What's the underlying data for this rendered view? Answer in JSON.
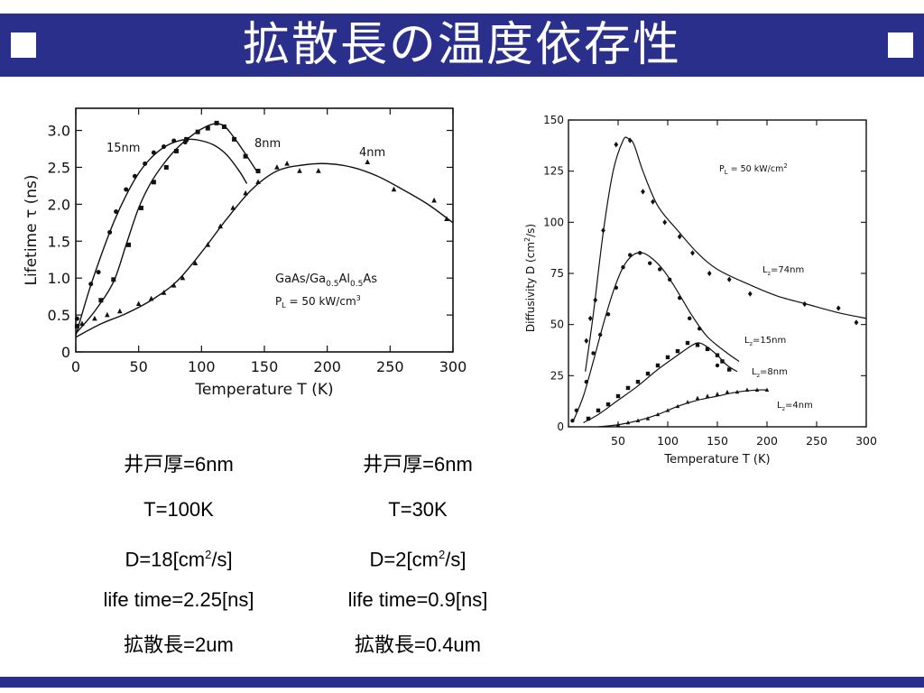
{
  "header": {
    "title": "拡散長の温度依存性"
  },
  "chart_data": [
    {
      "type": "scatter",
      "xlabel": "Temperature  T  (K)",
      "ylabel": "Lifetime τ (ns)",
      "xlim": [
        0,
        300
      ],
      "ylim": [
        0,
        3.3
      ],
      "xticks": [
        0,
        50,
        100,
        150,
        200,
        250,
        300
      ],
      "yticks": [
        0,
        0.5,
        1.0,
        1.5,
        2.0,
        2.5,
        3.0
      ],
      "yticklabels": [
        "0",
        "0.5",
        "1.0",
        "1.5",
        "2.0",
        "2.5",
        "3.0"
      ],
      "annotation": [
        "GaAs/Ga",
        "0.5",
        "Al",
        "0.5",
        "As"
      ],
      "annotation2": [
        "P",
        "L",
        " = 50 kW/cm",
        "3"
      ],
      "series": [
        {
          "name": "15nm",
          "marker": "circle",
          "points": [
            [
              1,
              0.45
            ],
            [
              12,
              0.92
            ],
            [
              18,
              1.08
            ],
            [
              27,
              1.62
            ],
            [
              32,
              1.9
            ],
            [
              40,
              2.2
            ],
            [
              47,
              2.38
            ],
            [
              55,
              2.55
            ],
            [
              62,
              2.7
            ],
            [
              70,
              2.78
            ],
            [
              78,
              2.86
            ],
            [
              87,
              2.84
            ]
          ],
          "curve": [
            [
              0,
              0.22
            ],
            [
              10,
              0.8
            ],
            [
              20,
              1.3
            ],
            [
              30,
              1.75
            ],
            [
              40,
              2.12
            ],
            [
              50,
              2.42
            ],
            [
              60,
              2.63
            ],
            [
              70,
              2.77
            ],
            [
              80,
              2.85
            ],
            [
              90,
              2.88
            ],
            [
              100,
              2.86
            ],
            [
              110,
              2.8
            ],
            [
              120,
              2.67
            ],
            [
              130,
              2.45
            ],
            [
              136,
              2.28
            ]
          ]
        },
        {
          "name": "8nm",
          "marker": "square",
          "points": [
            [
              1,
              0.35
            ],
            [
              20,
              0.7
            ],
            [
              30,
              0.98
            ],
            [
              42,
              1.45
            ],
            [
              52,
              1.95
            ],
            [
              62,
              2.3
            ],
            [
              72,
              2.5
            ],
            [
              80,
              2.72
            ],
            [
              88,
              2.88
            ],
            [
              97,
              2.98
            ],
            [
              105,
              3.03
            ],
            [
              112,
              3.1
            ],
            [
              118,
              3.05
            ],
            [
              126,
              2.88
            ],
            [
              135,
              2.65
            ],
            [
              145,
              2.45
            ]
          ],
          "curve": [
            [
              0,
              0.25
            ],
            [
              15,
              0.55
            ],
            [
              30,
              0.95
            ],
            [
              40,
              1.45
            ],
            [
              50,
              1.95
            ],
            [
              60,
              2.3
            ],
            [
              70,
              2.55
            ],
            [
              80,
              2.75
            ],
            [
              90,
              2.9
            ],
            [
              100,
              3.02
            ],
            [
              110,
              3.09
            ],
            [
              118,
              3.06
            ],
            [
              126,
              2.9
            ],
            [
              135,
              2.68
            ],
            [
              145,
              2.42
            ]
          ]
        },
        {
          "name": "4nm",
          "marker": "triangle",
          "points": [
            [
              5,
              0.38
            ],
            [
              15,
              0.45
            ],
            [
              25,
              0.5
            ],
            [
              35,
              0.55
            ],
            [
              50,
              0.65
            ],
            [
              60,
              0.72
            ],
            [
              70,
              0.8
            ],
            [
              78,
              0.9
            ],
            [
              85,
              1.0
            ],
            [
              95,
              1.2
            ],
            [
              105,
              1.45
            ],
            [
              115,
              1.7
            ],
            [
              125,
              1.95
            ],
            [
              135,
              2.15
            ],
            [
              145,
              2.3
            ],
            [
              160,
              2.5
            ],
            [
              168,
              2.55
            ],
            [
              178,
              2.45
            ],
            [
              193,
              2.45
            ],
            [
              232,
              2.57
            ],
            [
              253,
              2.2
            ],
            [
              285,
              2.05
            ],
            [
              295,
              1.8
            ]
          ],
          "curve": [
            [
              0,
              0.2
            ],
            [
              20,
              0.38
            ],
            [
              40,
              0.52
            ],
            [
              60,
              0.7
            ],
            [
              80,
              0.95
            ],
            [
              100,
              1.35
            ],
            [
              120,
              1.8
            ],
            [
              140,
              2.2
            ],
            [
              160,
              2.45
            ],
            [
              180,
              2.53
            ],
            [
              200,
              2.55
            ],
            [
              220,
              2.5
            ],
            [
              240,
              2.38
            ],
            [
              260,
              2.2
            ],
            [
              280,
              2.0
            ],
            [
              300,
              1.75
            ]
          ]
        }
      ]
    },
    {
      "type": "scatter",
      "xlabel": "Temperature  T  (K)",
      "ylabel": [
        "Diffusivity  D  (cm",
        "2",
        "/s)"
      ],
      "xlim": [
        0,
        300
      ],
      "ylim": [
        0,
        150
      ],
      "xticks": [
        50,
        100,
        150,
        200,
        250,
        300
      ],
      "yticks": [
        0,
        25,
        50,
        75,
        100,
        125,
        150
      ],
      "annotation": [
        "P",
        "L",
        " = 50  kW/cm",
        "2"
      ],
      "series": [
        {
          "name": [
            "L",
            "z",
            "=74nm"
          ],
          "marker": "diamond",
          "points": [
            [
              18,
              42
            ],
            [
              22,
              53
            ],
            [
              27,
              62
            ],
            [
              35,
              96
            ],
            [
              48,
              138
            ],
            [
              62,
              140
            ],
            [
              75,
              115
            ],
            [
              85,
              110
            ],
            [
              97,
              100
            ],
            [
              112,
              93
            ],
            [
              125,
              85
            ],
            [
              142,
              75
            ],
            [
              162,
              72
            ],
            [
              183,
              65
            ],
            [
              238,
              60
            ],
            [
              272,
              58
            ],
            [
              290,
              51
            ]
          ],
          "curve": [
            [
              17,
              27
            ],
            [
              25,
              55
            ],
            [
              35,
              95
            ],
            [
              45,
              125
            ],
            [
              55,
              140
            ],
            [
              60,
              141
            ],
            [
              66,
              138
            ],
            [
              75,
              125
            ],
            [
              90,
              108
            ],
            [
              110,
              96
            ],
            [
              130,
              85
            ],
            [
              150,
              77
            ],
            [
              180,
              70
            ],
            [
              210,
              64
            ],
            [
              240,
              60
            ],
            [
              270,
              56
            ],
            [
              300,
              53
            ]
          ]
        },
        {
          "name": [
            "L",
            "z",
            "=15nm"
          ],
          "marker": "circle",
          "points": [
            [
              4,
              3
            ],
            [
              8,
              8
            ],
            [
              18,
              22
            ],
            [
              25,
              36
            ],
            [
              32,
              45
            ],
            [
              40,
              55
            ],
            [
              48,
              68
            ],
            [
              55,
              78
            ],
            [
              62,
              84
            ],
            [
              72,
              85
            ],
            [
              82,
              80
            ],
            [
              92,
              77
            ],
            [
              102,
              72
            ],
            [
              112,
              63
            ],
            [
              122,
              53
            ],
            [
              132,
              48
            ],
            [
              150,
              30
            ]
          ],
          "curve": [
            [
              5,
              3
            ],
            [
              15,
              15
            ],
            [
              25,
              32
            ],
            [
              35,
              50
            ],
            [
              45,
              66
            ],
            [
              55,
              78
            ],
            [
              65,
              84
            ],
            [
              75,
              85
            ],
            [
              85,
              82
            ],
            [
              95,
              77
            ],
            [
              105,
              70
            ],
            [
              115,
              62
            ],
            [
              125,
              54
            ],
            [
              140,
              44
            ],
            [
              160,
              36
            ],
            [
              172,
              32
            ]
          ]
        },
        {
          "name": [
            "L",
            "z",
            "=8nm"
          ],
          "marker": "square",
          "points": [
            [
              20,
              4
            ],
            [
              30,
              8
            ],
            [
              40,
              11
            ],
            [
              50,
              15
            ],
            [
              60,
              19
            ],
            [
              70,
              22
            ],
            [
              80,
              26
            ],
            [
              90,
              30
            ],
            [
              100,
              34
            ],
            [
              110,
              37
            ],
            [
              120,
              41
            ],
            [
              130,
              40
            ],
            [
              140,
              38
            ],
            [
              150,
              35
            ],
            [
              155,
              32
            ],
            [
              162,
              28
            ]
          ],
          "curve": [
            [
              15,
              2
            ],
            [
              30,
              6
            ],
            [
              50,
              13
            ],
            [
              70,
              20
            ],
            [
              90,
              28
            ],
            [
              110,
              35
            ],
            [
              125,
              40
            ],
            [
              132,
              41
            ],
            [
              140,
              39
            ],
            [
              150,
              35
            ],
            [
              160,
              30
            ],
            [
              170,
              27
            ]
          ]
        },
        {
          "name": [
            "L",
            "z",
            "=4nm"
          ],
          "marker": "triangle",
          "points": [
            [
              50,
              1
            ],
            [
              60,
              2
            ],
            [
              70,
              3
            ],
            [
              80,
              4
            ],
            [
              90,
              6
            ],
            [
              100,
              8
            ],
            [
              110,
              10
            ],
            [
              120,
              12
            ],
            [
              130,
              14
            ],
            [
              140,
              15
            ],
            [
              150,
              16
            ],
            [
              160,
              17
            ],
            [
              170,
              17
            ],
            [
              180,
              18
            ],
            [
              190,
              18
            ],
            [
              200,
              18
            ]
          ],
          "curve": [
            [
              30,
              0
            ],
            [
              50,
              1
            ],
            [
              70,
              3
            ],
            [
              90,
              6
            ],
            [
              110,
              10
            ],
            [
              130,
              13
            ],
            [
              150,
              15
            ],
            [
              170,
              17
            ],
            [
              190,
              18
            ],
            [
              200,
              18
            ]
          ]
        }
      ]
    }
  ],
  "captions": {
    "left": {
      "well": "井戸厚=6nm",
      "temp": "T=100K",
      "d_pre": "D=18[cm",
      "d_sup": "2",
      "d_post": "/s]",
      "life": "life time=2.25[ns]",
      "length": "拡散長=2um"
    },
    "right": {
      "well": "井戸厚=6nm",
      "temp": "T=30K",
      "d_pre": "D=2[cm",
      "d_sup": "2",
      "d_post": "/s]",
      "life": "life time=0.9[ns]",
      "length": "拡散長=0.4um"
    }
  }
}
